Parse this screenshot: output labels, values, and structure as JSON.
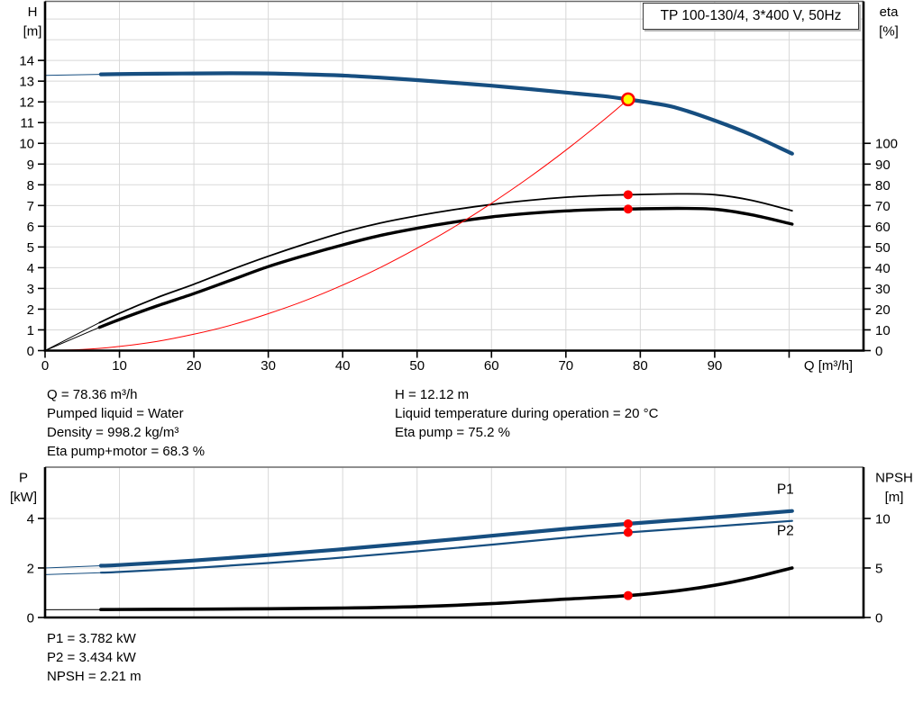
{
  "title_box": {
    "label": "TP 100-130/4, 3*400 V, 50Hz"
  },
  "colors": {
    "blue": "#164e80",
    "red": "#ff0000",
    "black": "#000000",
    "yellow": "#ffff00",
    "grid": "#d8d8d8",
    "frame": "#6a6a6a",
    "axis": "#000000"
  },
  "chart_data": [
    {
      "id": "qh-eta",
      "type": "line",
      "title": "TP 100-130/4, 3*400 V, 50Hz",
      "x_label": "Q [m³/h]",
      "x_range": [
        0,
        110
      ],
      "x_ticks": [
        0,
        10,
        20,
        30,
        40,
        50,
        60,
        70,
        80,
        90
      ],
      "x_ticks_unlabeled": [
        100
      ],
      "x_grid": [
        10,
        20,
        30,
        40,
        50,
        60,
        70,
        80,
        90,
        100
      ],
      "left_axis": {
        "title": [
          "H",
          "[m]"
        ],
        "ticks": [
          0,
          1,
          2,
          3,
          4,
          5,
          6,
          7,
          8,
          9,
          10,
          11,
          12,
          13,
          14
        ],
        "range": [
          0,
          16.85
        ]
      },
      "right_axis": {
        "title": [
          "eta",
          "[%]"
        ],
        "ticks": [
          0,
          10,
          20,
          30,
          40,
          50,
          60,
          70,
          80,
          90,
          100
        ],
        "range": [
          0,
          168.5
        ]
      },
      "grid_left": [
        1,
        2,
        3,
        4,
        5,
        6,
        7,
        8,
        9,
        10,
        11,
        12,
        13,
        14,
        15,
        16
      ],
      "series": [
        {
          "name": "H-curve",
          "axis": "left",
          "color": "blue",
          "width": 4.2,
          "thin_until": 7.5,
          "points": [
            [
              0,
              13.28
            ],
            [
              7.5,
              13.33
            ],
            [
              15,
              13.36
            ],
            [
              20,
              13.37
            ],
            [
              25,
              13.38
            ],
            [
              30,
              13.37
            ],
            [
              35,
              13.33
            ],
            [
              40,
              13.27
            ],
            [
              45,
              13.17
            ],
            [
              50,
              13.05
            ],
            [
              55,
              12.92
            ],
            [
              60,
              12.78
            ],
            [
              65,
              12.62
            ],
            [
              70,
              12.45
            ],
            [
              75,
              12.28
            ],
            [
              78.36,
              12.12
            ],
            [
              82,
              11.92
            ],
            [
              85,
              11.7
            ],
            [
              90,
              11.1
            ],
            [
              95,
              10.4
            ],
            [
              100.4,
              9.5
            ]
          ]
        },
        {
          "name": "eta-pump",
          "axis": "right",
          "color": "black",
          "width": 1.8,
          "thin_until": 7.3,
          "points": [
            [
              0,
              0
            ],
            [
              7.3,
              13.5
            ],
            [
              10,
              18
            ],
            [
              15,
              25.5
            ],
            [
              20,
              32
            ],
            [
              25,
              39
            ],
            [
              30,
              45.5
            ],
            [
              35,
              51.5
            ],
            [
              40,
              57
            ],
            [
              45,
              61.5
            ],
            [
              50,
              65
            ],
            [
              55,
              68
            ],
            [
              60,
              70.5
            ],
            [
              65,
              72.5
            ],
            [
              70,
              74
            ],
            [
              75,
              74.9
            ],
            [
              78.36,
              75.2
            ],
            [
              85,
              75.6
            ],
            [
              90,
              75.2
            ],
            [
              95,
              72.5
            ],
            [
              100.4,
              67.5
            ]
          ]
        },
        {
          "name": "eta-pump-motor",
          "axis": "right",
          "color": "black",
          "width": 3.4,
          "thin_until": 7.3,
          "points": [
            [
              0,
              0
            ],
            [
              7.3,
              11.2
            ],
            [
              10,
              15
            ],
            [
              15,
              21.5
            ],
            [
              20,
              27.5
            ],
            [
              25,
              34
            ],
            [
              30,
              40.5
            ],
            [
              35,
              46
            ],
            [
              40,
              51
            ],
            [
              45,
              55.5
            ],
            [
              50,
              59
            ],
            [
              55,
              62
            ],
            [
              60,
              64.5
            ],
            [
              65,
              66.2
            ],
            [
              70,
              67.4
            ],
            [
              75,
              68.1
            ],
            [
              78.36,
              68.3
            ],
            [
              85,
              68.6
            ],
            [
              90,
              68.2
            ],
            [
              95,
              65.5
            ],
            [
              100.4,
              61
            ]
          ]
        },
        {
          "name": "system-curve",
          "axis": "left",
          "color": "red",
          "width": 1,
          "thin_until": 0,
          "points": [
            [
              0,
              0
            ],
            [
              5,
              0.05
            ],
            [
              10,
              0.2
            ],
            [
              15,
              0.44
            ],
            [
              20,
              0.79
            ],
            [
              25,
              1.23
            ],
            [
              30,
              1.78
            ],
            [
              35,
              2.42
            ],
            [
              40,
              3.16
            ],
            [
              45,
              4.0
            ],
            [
              50,
              4.94
            ],
            [
              55,
              5.97
            ],
            [
              60,
              7.11
            ],
            [
              65,
              8.34
            ],
            [
              70,
              9.67
            ],
            [
              75,
              11.1
            ],
            [
              78.36,
              12.12
            ]
          ]
        }
      ],
      "markers": [
        {
          "name": "duty-point",
          "axis": "left",
          "q": 78.36,
          "v": 12.12,
          "r": 6.5,
          "fill": "yellow",
          "stroke": "red",
          "sw": 2.5
        },
        {
          "name": "eta-pump-point",
          "axis": "right",
          "q": 78.36,
          "v": 75.2,
          "r": 5,
          "fill": "red"
        },
        {
          "name": "eta-pump-motor-point",
          "axis": "right",
          "q": 78.36,
          "v": 68.3,
          "r": 5,
          "fill": "red"
        }
      ],
      "labels": []
    },
    {
      "id": "power-npsh",
      "type": "line",
      "x_label": "",
      "x_range": [
        0,
        110
      ],
      "x_ticks": [],
      "x_ticks_unlabeled": [],
      "x_grid": [
        10,
        20,
        30,
        40,
        50,
        60,
        70,
        80,
        90,
        100
      ],
      "left_axis": {
        "title": [
          "P",
          "[kW]"
        ],
        "ticks": [
          0,
          2,
          4
        ],
        "range": [
          0,
          6.07
        ]
      },
      "right_axis": {
        "title": [
          "NPSH",
          "[m]"
        ],
        "ticks": [
          0,
          5,
          10
        ],
        "range": [
          0,
          15.18
        ]
      },
      "grid_left": [
        2,
        4
      ],
      "series": [
        {
          "name": "P1-curve",
          "axis": "left",
          "color": "blue",
          "width": 4.2,
          "thin_until": 7.5,
          "points": [
            [
              0,
              2.0
            ],
            [
              7.5,
              2.09
            ],
            [
              10,
              2.12
            ],
            [
              20,
              2.3
            ],
            [
              30,
              2.52
            ],
            [
              40,
              2.76
            ],
            [
              50,
              3.02
            ],
            [
              60,
              3.3
            ],
            [
              70,
              3.58
            ],
            [
              78.36,
              3.782
            ],
            [
              90,
              4.05
            ],
            [
              100.4,
              4.3
            ]
          ]
        },
        {
          "name": "P2-curve",
          "axis": "left",
          "color": "blue",
          "width": 2.2,
          "thin_until": 7.5,
          "points": [
            [
              0,
              1.73
            ],
            [
              7.5,
              1.81
            ],
            [
              10,
              1.84
            ],
            [
              20,
              2.0
            ],
            [
              30,
              2.2
            ],
            [
              40,
              2.42
            ],
            [
              50,
              2.67
            ],
            [
              60,
              2.94
            ],
            [
              70,
              3.22
            ],
            [
              78.36,
              3.434
            ],
            [
              90,
              3.68
            ],
            [
              100.4,
              3.9
            ]
          ]
        },
        {
          "name": "NPSH-curve",
          "axis": "right",
          "color": "black",
          "width": 3.6,
          "thin_until": 7.5,
          "points": [
            [
              0,
              0.78
            ],
            [
              7.5,
              0.8
            ],
            [
              20,
              0.84
            ],
            [
              30,
              0.88
            ],
            [
              40,
              0.95
            ],
            [
              50,
              1.1
            ],
            [
              60,
              1.4
            ],
            [
              70,
              1.85
            ],
            [
              78.36,
              2.21
            ],
            [
              85,
              2.7
            ],
            [
              90,
              3.25
            ],
            [
              95,
              4.0
            ],
            [
              100.4,
              5.0
            ]
          ]
        }
      ],
      "markers": [
        {
          "name": "p1-point",
          "axis": "left",
          "q": 78.36,
          "v": 3.782,
          "r": 5,
          "fill": "red"
        },
        {
          "name": "p2-point",
          "axis": "left",
          "q": 78.36,
          "v": 3.434,
          "r": 5,
          "fill": "red"
        },
        {
          "name": "npsh-point",
          "axis": "right",
          "q": 78.36,
          "v": 2.21,
          "r": 5,
          "fill": "red"
        }
      ],
      "labels": [
        {
          "text": "P1",
          "q": 99.5,
          "v": 5.0,
          "color": "blue"
        },
        {
          "text": "P2",
          "q": 99.5,
          "v": 3.32,
          "color": "blue"
        }
      ]
    }
  ],
  "info_top": {
    "col1": [
      "Q = 78.36 m³/h",
      "Pumped liquid = Water",
      "Density = 998.2 kg/m³",
      "Eta pump+motor = 68.3 %"
    ],
    "col2": [
      "H = 12.12 m",
      "Liquid temperature during operation = 20 °C",
      "Eta pump = 75.2 %"
    ]
  },
  "info_bottom": {
    "lines": [
      "P1 = 3.782 kW",
      "P2 = 3.434 kW",
      "NPSH = 2.21 m"
    ]
  }
}
